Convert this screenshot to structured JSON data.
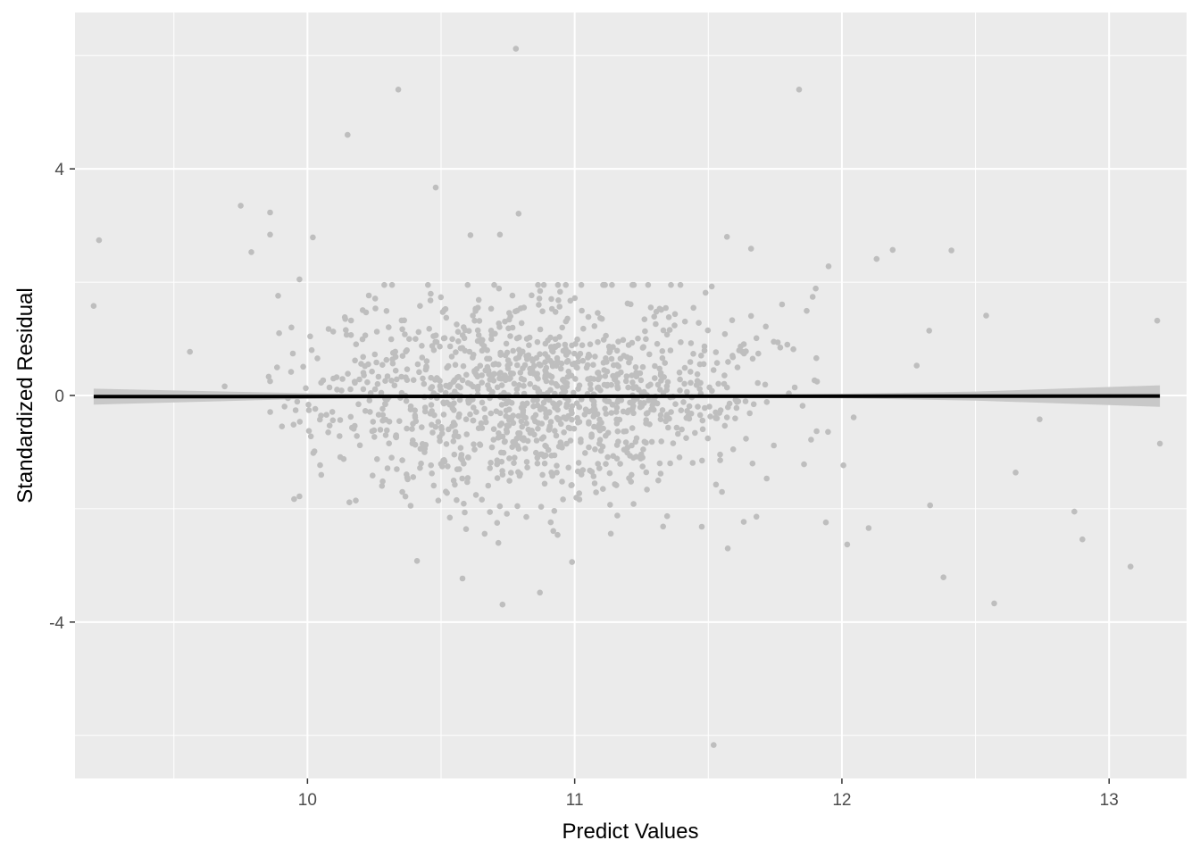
{
  "chart_data": {
    "type": "scatter",
    "title": "",
    "xlabel": "Predict Values",
    "ylabel": "Standardized Residual",
    "xlim": [
      9.13,
      13.29
    ],
    "ylim": [
      -6.76,
      6.76
    ],
    "x_ticks": [
      10,
      11,
      12,
      13
    ],
    "x_minor_ticks": [
      9.5,
      10.5,
      11.5,
      12.5
    ],
    "x_tick_labels": [
      "10",
      "11",
      "12",
      "13"
    ],
    "y_ticks": [
      -4,
      0,
      4
    ],
    "y_minor_ticks": [
      -6,
      -2,
      2,
      6
    ],
    "y_tick_labels": [
      "-4",
      "0",
      "4"
    ],
    "grid": true,
    "legend": "none",
    "colors": {
      "panel": "#ebebeb",
      "grid": "#ffffff",
      "points": "#bebebe",
      "fit_line": "#000000",
      "ci_band": "#c8c8c8"
    },
    "fit_line": {
      "x": [
        9.2,
        13.19
      ],
      "y": [
        -0.02,
        -0.01
      ]
    },
    "ci_band": {
      "x": [
        9.2,
        10.0,
        10.5,
        11.0,
        11.5,
        12.0,
        12.5,
        13.19
      ],
      "lower": [
        -0.16,
        -0.06,
        -0.03,
        -0.02,
        -0.03,
        -0.05,
        -0.09,
        -0.2
      ],
      "upper": [
        0.12,
        0.04,
        0.01,
        0.0,
        0.01,
        0.03,
        0.07,
        0.18
      ]
    },
    "outliers": [
      [
        9.2,
        1.58
      ],
      [
        9.22,
        2.74
      ],
      [
        9.56,
        0.77
      ],
      [
        9.69,
        0.16
      ],
      [
        9.75,
        3.35
      ],
      [
        9.79,
        2.53
      ],
      [
        9.86,
        3.23
      ],
      [
        9.86,
        2.84
      ],
      [
        9.86,
        0.25
      ],
      [
        9.89,
        1.76
      ],
      [
        9.94,
        1.2
      ],
      [
        9.97,
        2.05
      ],
      [
        10.02,
        2.79
      ],
      [
        10.15,
        4.6
      ],
      [
        10.34,
        5.4
      ],
      [
        10.48,
        3.67
      ],
      [
        10.61,
        2.83
      ],
      [
        10.72,
        2.84
      ],
      [
        10.78,
        6.12
      ],
      [
        10.79,
        3.21
      ],
      [
        11.57,
        2.8
      ],
      [
        11.66,
        2.59
      ],
      [
        11.84,
        5.4
      ],
      [
        11.95,
        2.28
      ],
      [
        12.13,
        2.41
      ],
      [
        12.19,
        2.57
      ],
      [
        12.41,
        2.56
      ],
      [
        12.54,
        1.41
      ],
      [
        13.18,
        1.32
      ],
      [
        13.19,
        -0.85
      ],
      [
        12.87,
        -2.05
      ],
      [
        12.9,
        -2.54
      ],
      [
        13.08,
        -3.02
      ],
      [
        12.57,
        -3.67
      ],
      [
        12.38,
        -3.21
      ],
      [
        12.33,
        -1.94
      ],
      [
        12.02,
        -2.63
      ],
      [
        11.94,
        -2.24
      ],
      [
        11.52,
        -6.17
      ],
      [
        10.87,
        -3.48
      ],
      [
        10.73,
        -3.69
      ],
      [
        10.58,
        -3.23
      ],
      [
        10.41,
        -2.92
      ],
      [
        10.99,
        -2.94
      ],
      [
        9.97,
        -1.78
      ],
      [
        9.95,
        -1.83
      ],
      [
        12.65,
        -1.36
      ],
      [
        12.74,
        -0.42
      ],
      [
        12.1,
        -2.34
      ],
      [
        11.68,
        -2.14
      ]
    ],
    "cloud": {
      "count": 1240,
      "x_mean": 10.85,
      "x_sd": 0.42,
      "y_sd": 0.92
    }
  }
}
